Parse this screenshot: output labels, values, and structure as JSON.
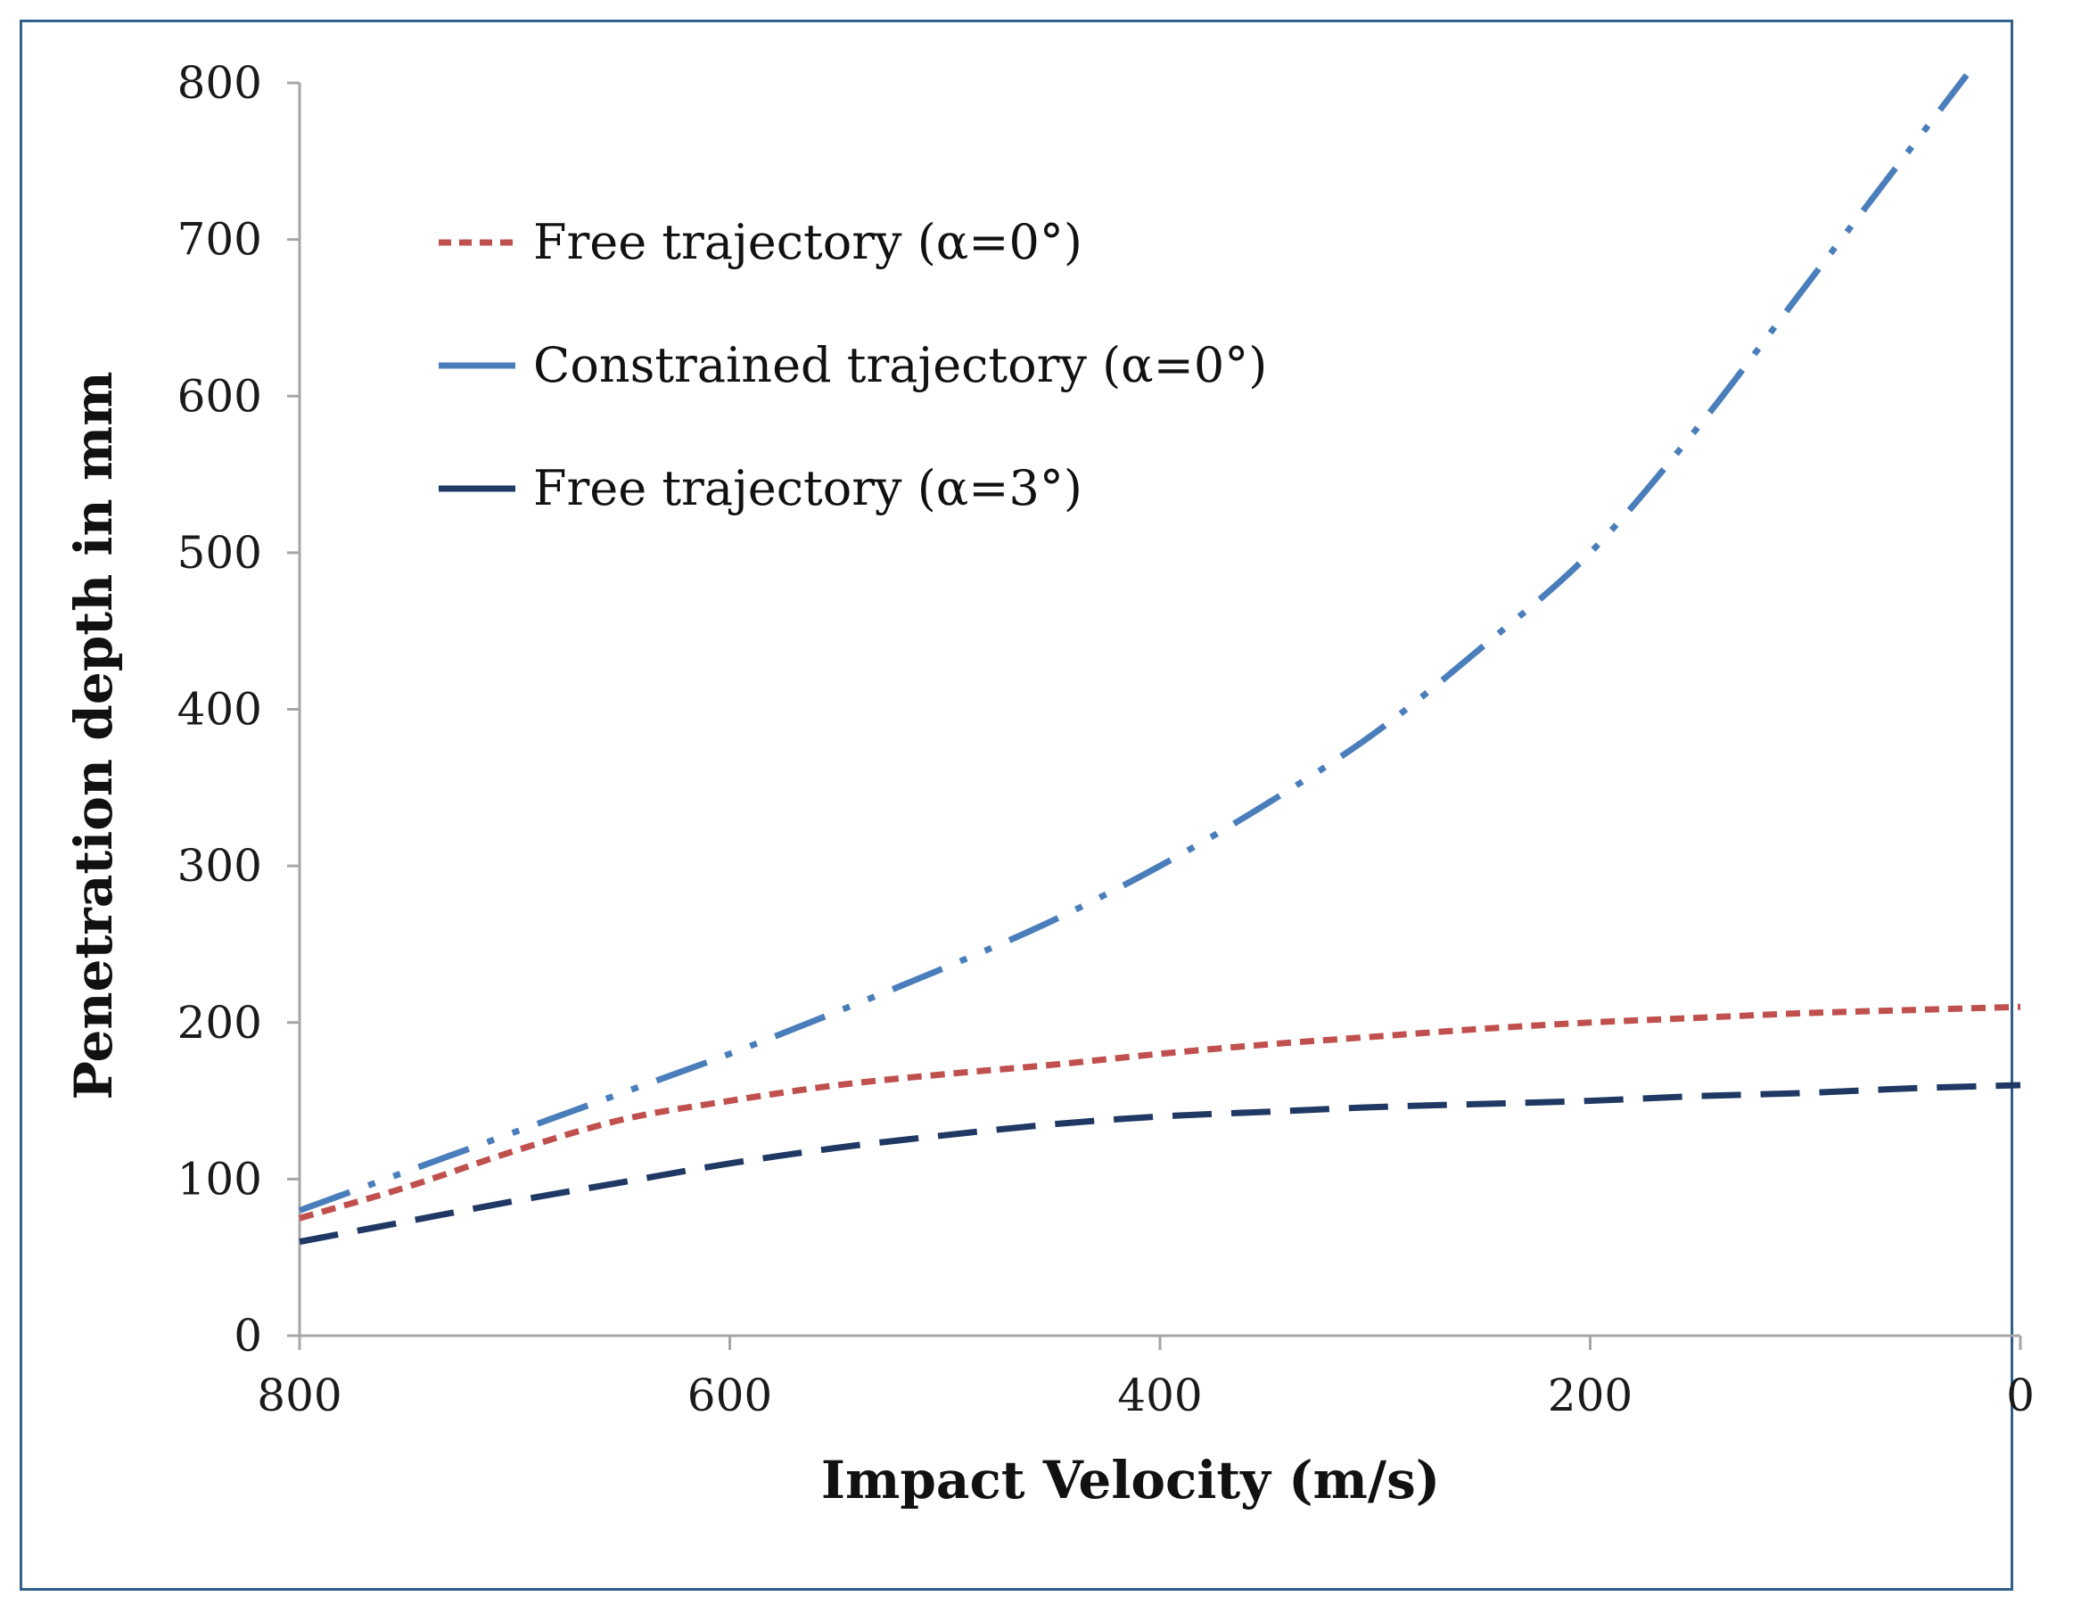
{
  "chart_data": {
    "type": "line",
    "title": "",
    "xlabel": "Impact Velocity (m/s)",
    "ylabel": "Penetration depth in mm",
    "xlim": [
      800,
      0
    ],
    "ylim": [
      0,
      800
    ],
    "x_ticks": [
      "800",
      "600",
      "400",
      "200",
      "0"
    ],
    "y_ticks": [
      "0",
      "100",
      "200",
      "300",
      "400",
      "500",
      "600",
      "700",
      "800"
    ],
    "grid": false,
    "legend_position": "top-left",
    "series": [
      {
        "name": "Free trajectory (α=0°)",
        "style": "dotted",
        "color": "#c0504d",
        "x": [
          800,
          750,
          700,
          650,
          600,
          550,
          500,
          450,
          400,
          350,
          300,
          250,
          200,
          150,
          100,
          50,
          0
        ],
        "values": [
          75,
          95,
          118,
          138,
          150,
          160,
          167,
          173,
          180,
          186,
          191,
          196,
          200,
          203,
          206,
          208,
          210
        ]
      },
      {
        "name": "Constrained trajectory (α=0°)",
        "style": "dash-dot-dot",
        "color": "#4a7ebb",
        "x": [
          800,
          750,
          700,
          650,
          600,
          550,
          500,
          450,
          400,
          350,
          300,
          250,
          200,
          150,
          100,
          50,
          25
        ],
        "values": [
          80,
          105,
          130,
          155,
          180,
          207,
          235,
          265,
          300,
          340,
          385,
          440,
          500,
          580,
          670,
          760,
          805
        ]
      },
      {
        "name": "Free trajectory (α=3°)",
        "style": "dashed",
        "color": "#1f3864",
        "x": [
          800,
          750,
          700,
          650,
          600,
          550,
          500,
          450,
          400,
          350,
          300,
          250,
          200,
          150,
          100,
          50,
          0
        ],
        "values": [
          60,
          73,
          86,
          98,
          110,
          120,
          128,
          135,
          140,
          143,
          146,
          148,
          150,
          153,
          155,
          158,
          160
        ]
      }
    ]
  }
}
